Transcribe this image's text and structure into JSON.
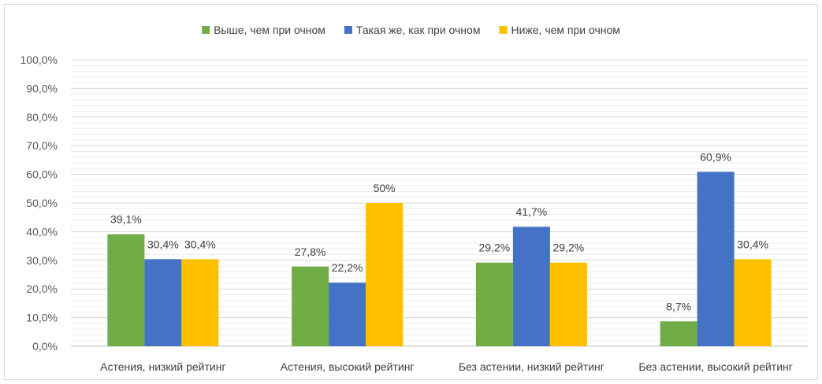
{
  "chart_data": {
    "type": "bar",
    "categories": [
      "Астения, низкий рейтинг",
      "Астения, высокий рейтинг",
      "Без астении, низкий рейтинг",
      "Без астении, высокий рейтинг"
    ],
    "series": [
      {
        "name": "Выше, чем при очном",
        "color": "#70ad47",
        "values": [
          39.1,
          27.8,
          29.2,
          8.7
        ],
        "labels": [
          "39,1%",
          "27,8%",
          "29,2%",
          "8,7%"
        ]
      },
      {
        "name": "Такая же, как при очном",
        "color": "#4472c4",
        "values": [
          30.4,
          22.2,
          41.7,
          60.9
        ],
        "labels": [
          "30,4%",
          "22,2%",
          "41,7%",
          "60,9%"
        ]
      },
      {
        "name": "Ниже, чем при очном",
        "color": "#ffc000",
        "values": [
          30.4,
          50,
          29.2,
          30.4
        ],
        "labels": [
          "30,4%",
          "50%",
          "29,2%",
          "30,4%"
        ]
      }
    ],
    "yticks": [
      "0,0%",
      "10,0%",
      "20,0%",
      "30,0%",
      "40,0%",
      "50,0%",
      "60,0%",
      "70,0%",
      "80,0%",
      "90,0%",
      "100,0%"
    ],
    "ylim": [
      0,
      100
    ],
    "grid": true,
    "legend_position": "top"
  }
}
